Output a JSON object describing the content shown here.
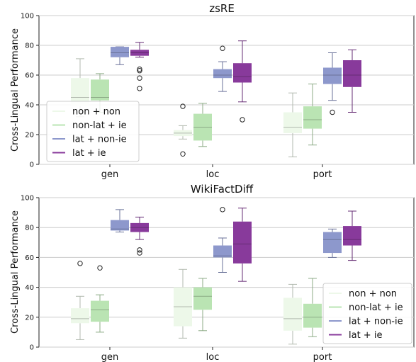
{
  "colors": {
    "non + non": "#edf8e9",
    "non-lat + ie": "#bae4b3",
    "lat + non-ie": "#8d98cc",
    "lat + ie": "#883a9b"
  },
  "chart_data": [
    {
      "type": "box",
      "title": "zsRE",
      "ylabel": "Cross-Lingual Performance",
      "ylim": [
        0,
        100
      ],
      "yticks": [
        0,
        20,
        40,
        60,
        80,
        100
      ],
      "grid": true,
      "categories": [
        "gen",
        "loc",
        "port"
      ],
      "legend": {
        "entries": [
          "non + non",
          "non-lat + ie",
          "lat + non-ie",
          "lat + ie"
        ],
        "position": "center-left"
      },
      "series": [
        {
          "name": "non + non",
          "boxes": [
            {
              "category": "gen",
              "whislo": 32,
              "q1": 39,
              "med": 45,
              "q3": 58,
              "whishi": 71,
              "fliers": []
            },
            {
              "category": "loc",
              "whislo": 17,
              "q1": 19,
              "med": 21,
              "q3": 23,
              "whishi": 26,
              "fliers": [
                39,
                7
              ]
            },
            {
              "category": "port",
              "whislo": 5,
              "q1": 21,
              "med": 25,
              "q3": 35,
              "whishi": 48,
              "fliers": []
            }
          ]
        },
        {
          "name": "non-lat + ie",
          "boxes": [
            {
              "category": "gen",
              "whislo": 35,
              "q1": 43,
              "med": 45,
              "q3": 57,
              "whishi": 61,
              "fliers": []
            },
            {
              "category": "loc",
              "whislo": 12,
              "q1": 16,
              "med": 25,
              "q3": 34,
              "whishi": 41,
              "fliers": []
            },
            {
              "category": "port",
              "whislo": 13,
              "q1": 24,
              "med": 30,
              "q3": 39,
              "whishi": 54,
              "fliers": []
            }
          ]
        },
        {
          "name": "lat + non-ie",
          "boxes": [
            {
              "category": "gen",
              "whislo": 67,
              "q1": 72,
              "med": 75,
              "q3": 79,
              "whishi": 79,
              "fliers": []
            },
            {
              "category": "loc",
              "whislo": 49,
              "q1": 58,
              "med": 60,
              "q3": 64,
              "whishi": 69,
              "fliers": [
                78
              ]
            },
            {
              "category": "port",
              "whislo": 43,
              "q1": 54,
              "med": 60,
              "q3": 65,
              "whishi": 75,
              "fliers": [
                35
              ]
            }
          ]
        },
        {
          "name": "lat + ie",
          "boxes": [
            {
              "category": "gen",
              "whislo": 72,
              "q1": 73,
              "med": 75,
              "q3": 77,
              "whishi": 82,
              "fliers": [
                64,
                63,
                58,
                51
              ]
            },
            {
              "category": "loc",
              "whislo": 42,
              "q1": 55,
              "med": 59,
              "q3": 68,
              "whishi": 83,
              "fliers": [
                30
              ]
            },
            {
              "category": "port",
              "whislo": 35,
              "q1": 52,
              "med": 60,
              "q3": 70,
              "whishi": 77,
              "fliers": []
            }
          ]
        }
      ]
    },
    {
      "type": "box",
      "title": "WikiFactDiff",
      "ylabel": "Cross-Lingual Performance",
      "ylim": [
        0,
        100
      ],
      "yticks": [
        0,
        20,
        40,
        60,
        80,
        100
      ],
      "grid": true,
      "categories": [
        "gen",
        "loc",
        "port"
      ],
      "legend": {
        "entries": [
          "non + non",
          "non-lat + ie",
          "lat + non-ie",
          "lat + ie"
        ],
        "position": "lower-right"
      },
      "series": [
        {
          "name": "non + non",
          "boxes": [
            {
              "category": "gen",
              "whislo": 5,
              "q1": 16,
              "med": 19,
              "q3": 26,
              "whishi": 34,
              "fliers": [
                56
              ]
            },
            {
              "category": "loc",
              "whislo": 6,
              "q1": 14,
              "med": 27,
              "q3": 40,
              "whishi": 52,
              "fliers": []
            },
            {
              "category": "port",
              "whislo": 2,
              "q1": 11,
              "med": 19,
              "q3": 33,
              "whishi": 42,
              "fliers": []
            }
          ]
        },
        {
          "name": "non-lat + ie",
          "boxes": [
            {
              "category": "gen",
              "whislo": 10,
              "q1": 17,
              "med": 25,
              "q3": 31,
              "whishi": 35,
              "fliers": [
                53
              ]
            },
            {
              "category": "loc",
              "whislo": 11,
              "q1": 25,
              "med": 34,
              "q3": 40,
              "whishi": 46,
              "fliers": []
            },
            {
              "category": "port",
              "whislo": 7,
              "q1": 13,
              "med": 20,
              "q3": 29,
              "whishi": 46,
              "fliers": []
            }
          ]
        },
        {
          "name": "lat + non-ie",
          "boxes": [
            {
              "category": "gen",
              "whislo": 77,
              "q1": 78,
              "med": 79,
              "q3": 85,
              "whishi": 92,
              "fliers": []
            },
            {
              "category": "loc",
              "whislo": 50,
              "q1": 60,
              "med": 61,
              "q3": 68,
              "whishi": 73,
              "fliers": [
                92
              ]
            },
            {
              "category": "port",
              "whislo": 60,
              "q1": 63,
              "med": 72,
              "q3": 77,
              "whishi": 79,
              "fliers": []
            }
          ]
        },
        {
          "name": "lat + ie",
          "boxes": [
            {
              "category": "gen",
              "whislo": 72,
              "q1": 77,
              "med": 80,
              "q3": 83,
              "whishi": 87,
              "fliers": [
                65,
                63
              ]
            },
            {
              "category": "loc",
              "whislo": 44,
              "q1": 56,
              "med": 69,
              "q3": 84,
              "whishi": 93,
              "fliers": []
            },
            {
              "category": "port",
              "whislo": 58,
              "q1": 68,
              "med": 72,
              "q3": 81,
              "whishi": 91,
              "fliers": []
            }
          ]
        }
      ]
    }
  ]
}
